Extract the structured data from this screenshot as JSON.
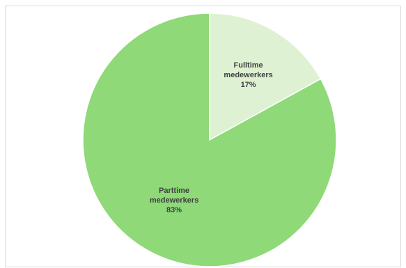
{
  "chart_data": {
    "type": "pie",
    "title": "",
    "start_angle_deg": 0,
    "direction": "clockwise",
    "slices": [
      {
        "label_lines": [
          "Fulltime",
          "medewerkers",
          "17%"
        ],
        "value": 17,
        "color": "#def2d3"
      },
      {
        "label_lines": [
          "Parttime",
          "medewerkers",
          "83%"
        ],
        "value": 83,
        "color": "#8fd978"
      }
    ]
  }
}
